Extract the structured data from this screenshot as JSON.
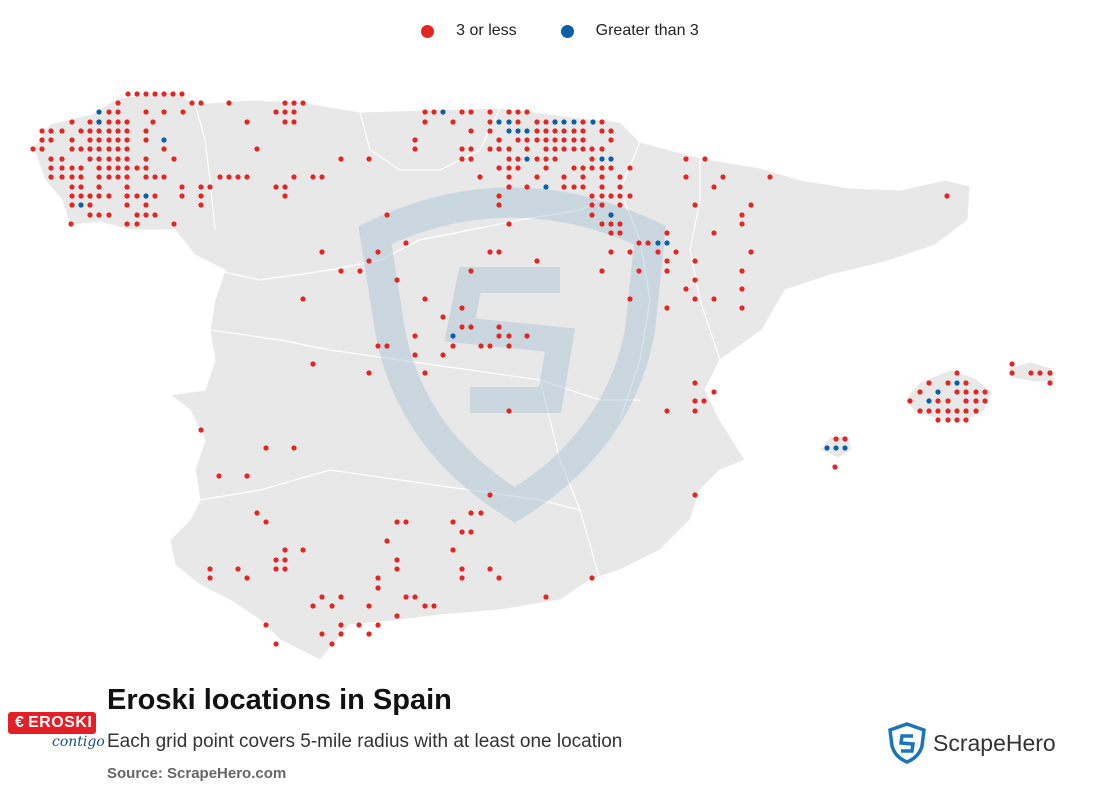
{
  "legend": {
    "items": [
      {
        "label": "3 or less",
        "color": "#e52521"
      },
      {
        "label": "Greater than 3",
        "color": "#0a5fa8"
      }
    ]
  },
  "map": {
    "land_color": "#e8e8e8",
    "border_color": "#ffffff",
    "watermark_color": "#a9c3d6"
  },
  "footer": {
    "title": "Eroski locations in Spain",
    "subtitle": "Each grid point covers 5-mile radius with at least one location",
    "source": "Source: ScrapeHero.com"
  },
  "brand": {
    "name": "EROSKI",
    "tagline": "contigo",
    "color": "#e41f26"
  },
  "scrapehero": {
    "name": "ScrapeHero",
    "color": "#1b75bb"
  }
}
